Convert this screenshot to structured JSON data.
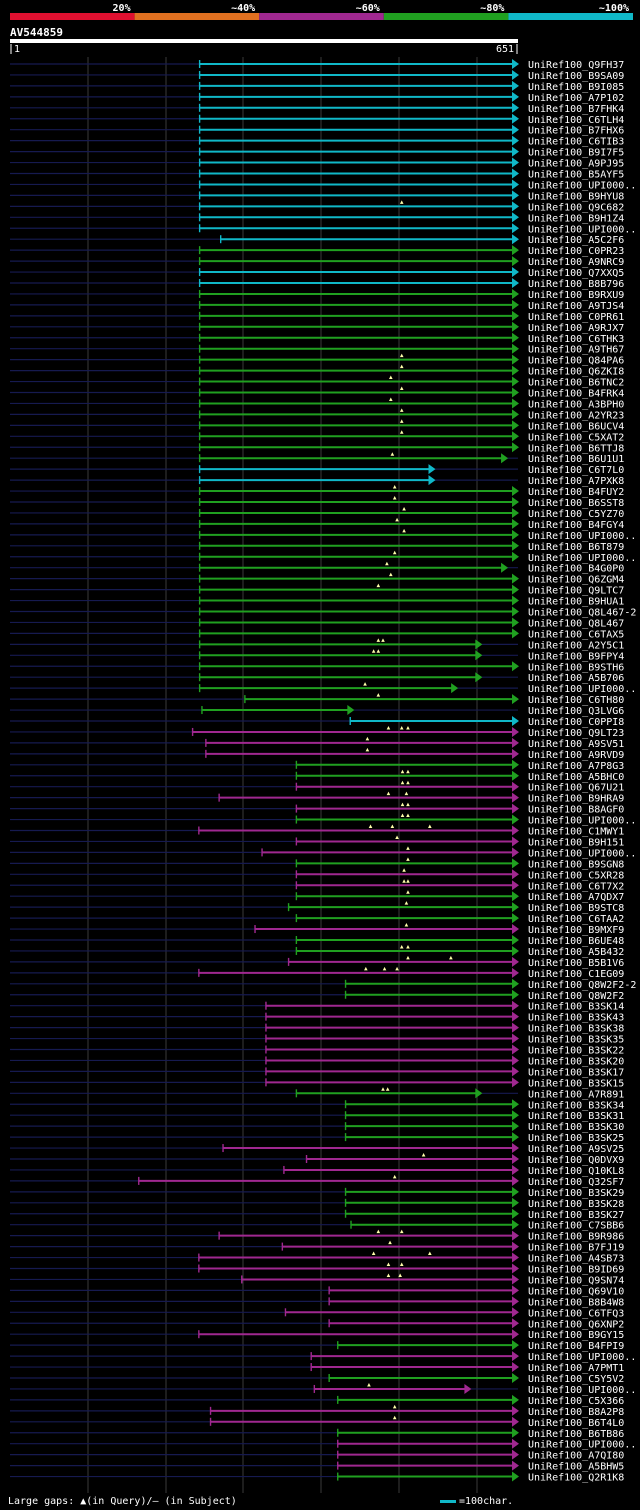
{
  "legend": {
    "bins": [
      {
        "label": "20%",
        "color": "#e01030"
      },
      {
        "label": "~40%",
        "color": "#e07020"
      },
      {
        "label": "~60%",
        "color": "#a02890"
      },
      {
        "label": "~80%",
        "color": "#20a020"
      },
      {
        "label": "~100%",
        "color": "#10b8c8"
      }
    ]
  },
  "query": {
    "name": "AV544859",
    "start_label": "1",
    "end_label": "651",
    "length": 651
  },
  "scale_note": "=100char.",
  "footer": "Large gaps: ▲(in Query)/— (in Subject)",
  "hits": [
    {
      "name": "UniRef100_Q9FH37",
      "cls": "c",
      "s": 243,
      "e": 651
    },
    {
      "name": "UniRef100_B9SA09",
      "cls": "c",
      "s": 243,
      "e": 651
    },
    {
      "name": "UniRef100_B9I085",
      "cls": "c",
      "s": 243,
      "e": 651
    },
    {
      "name": "UniRef100_A7P102",
      "cls": "c",
      "s": 243,
      "e": 651
    },
    {
      "name": "UniRef100_B7FHK4",
      "cls": "c",
      "s": 243,
      "e": 651
    },
    {
      "name": "UniRef100_C6TLH4",
      "cls": "c",
      "s": 243,
      "e": 651
    },
    {
      "name": "UniRef100_B7FHX6",
      "cls": "c",
      "s": 243,
      "e": 651
    },
    {
      "name": "UniRef100_C6TIB3",
      "cls": "c",
      "s": 243,
      "e": 651
    },
    {
      "name": "UniRef100_B9I7F5",
      "cls": "c",
      "s": 243,
      "e": 651
    },
    {
      "name": "UniRef100_A9PJ95",
      "cls": "c",
      "s": 243,
      "e": 651
    },
    {
      "name": "UniRef100_B5AYF5",
      "cls": "c",
      "s": 243,
      "e": 651
    },
    {
      "name": "UniRef100_UPI000..",
      "cls": "c",
      "s": 243,
      "e": 651
    },
    {
      "name": "UniRef100_B9HYU8",
      "cls": "c",
      "s": 243,
      "e": 651
    },
    {
      "name": "UniRef100_Q9C682",
      "cls": "c",
      "s": 243,
      "e": 651,
      "t": [
        502
      ]
    },
    {
      "name": "UniRef100_B9H1Z4",
      "cls": "c",
      "s": 243,
      "e": 651
    },
    {
      "name": "UniRef100_UPI000..",
      "cls": "c",
      "s": 243,
      "e": 651
    },
    {
      "name": "UniRef100_A5C2F6",
      "cls": "c",
      "s": 270,
      "e": 651
    },
    {
      "name": "UniRef100_C0PR23",
      "cls": "g",
      "s": 243,
      "e": 651
    },
    {
      "name": "UniRef100_A9NRC9",
      "cls": "g",
      "s": 243,
      "e": 651
    },
    {
      "name": "UniRef100_Q7XXQ5",
      "cls": "c",
      "s": 243,
      "e": 651
    },
    {
      "name": "UniRef100_B8B796",
      "cls": "c",
      "s": 243,
      "e": 651
    },
    {
      "name": "UniRef100_B9RXU9",
      "cls": "g",
      "s": 243,
      "e": 651
    },
    {
      "name": "UniRef100_A9TJS4",
      "cls": "g",
      "s": 243,
      "e": 651
    },
    {
      "name": "UniRef100_C0PR61",
      "cls": "g",
      "s": 243,
      "e": 651
    },
    {
      "name": "UniRef100_A9RJX7",
      "cls": "g",
      "s": 243,
      "e": 651
    },
    {
      "name": "UniRef100_C6THK3",
      "cls": "g",
      "s": 243,
      "e": 651
    },
    {
      "name": "UniRef100_A9TH67",
      "cls": "g",
      "s": 243,
      "e": 651
    },
    {
      "name": "UniRef100_Q84PA6",
      "cls": "g",
      "s": 243,
      "e": 651,
      "t": [
        502
      ]
    },
    {
      "name": "UniRef100_Q6ZKI8",
      "cls": "g",
      "s": 243,
      "e": 651,
      "t": [
        502
      ]
    },
    {
      "name": "UniRef100_B6TNC2",
      "cls": "g",
      "s": 243,
      "e": 651,
      "t": [
        488
      ]
    },
    {
      "name": "UniRef100_B4FRK4",
      "cls": "g",
      "s": 243,
      "e": 651,
      "t": [
        502
      ]
    },
    {
      "name": "UniRef100_A3BPH0",
      "cls": "g",
      "s": 243,
      "e": 651,
      "t": [
        488
      ]
    },
    {
      "name": "UniRef100_A2YR23",
      "cls": "g",
      "s": 243,
      "e": 651,
      "t": [
        502
      ]
    },
    {
      "name": "UniRef100_B6UCV4",
      "cls": "g",
      "s": 243,
      "e": 651,
      "t": [
        502
      ]
    },
    {
      "name": "UniRef100_C5XAT2",
      "cls": "g",
      "s": 243,
      "e": 651,
      "t": [
        502
      ]
    },
    {
      "name": "UniRef100_B6TTJ8",
      "cls": "g",
      "s": 243,
      "e": 651
    },
    {
      "name": "UniRef100_B6U1U1",
      "cls": "g",
      "s": 243,
      "e": 637,
      "t": [
        490
      ]
    },
    {
      "name": "UniRef100_C6T7L0",
      "cls": "c",
      "s": 243,
      "e": 544
    },
    {
      "name": "UniRef100_A7PXK8",
      "cls": "c",
      "s": 243,
      "e": 544
    },
    {
      "name": "UniRef100_B4FUY2",
      "cls": "g",
      "s": 243,
      "e": 651,
      "t": [
        493
      ]
    },
    {
      "name": "UniRef100_B6SST8",
      "cls": "g",
      "s": 243,
      "e": 651,
      "t": [
        493
      ]
    },
    {
      "name": "UniRef100_C5YZ70",
      "cls": "g",
      "s": 243,
      "e": 651,
      "t": [
        505
      ]
    },
    {
      "name": "UniRef100_B4FGY4",
      "cls": "g",
      "s": 243,
      "e": 651,
      "t": [
        496
      ]
    },
    {
      "name": "UniRef100_UPI000..",
      "cls": "g",
      "s": 243,
      "e": 651,
      "t": [
        505
      ]
    },
    {
      "name": "UniRef100_B6T879",
      "cls": "g",
      "s": 243,
      "e": 651
    },
    {
      "name": "UniRef100_UPI000..",
      "cls": "g",
      "s": 243,
      "e": 651,
      "t": [
        493
      ]
    },
    {
      "name": "UniRef100_B4G0P0",
      "cls": "g",
      "s": 243,
      "e": 637,
      "t": [
        483
      ]
    },
    {
      "name": "UniRef100_Q6ZGM4",
      "cls": "g",
      "s": 243,
      "e": 651,
      "t": [
        488
      ]
    },
    {
      "name": "UniRef100_Q9LTC7",
      "cls": "g",
      "s": 243,
      "e": 651,
      "t": [
        472
      ]
    },
    {
      "name": "UniRef100_B9HUA1",
      "cls": "g",
      "s": 243,
      "e": 651
    },
    {
      "name": "UniRef100_Q8L467-2",
      "cls": "g",
      "s": 243,
      "e": 651
    },
    {
      "name": "UniRef100_Q8L467",
      "cls": "g",
      "s": 243,
      "e": 651
    },
    {
      "name": "UniRef100_C6TAX5",
      "cls": "g",
      "s": 243,
      "e": 651
    },
    {
      "name": "UniRef100_A2Y5C1",
      "cls": "g",
      "s": 243,
      "e": 604,
      "t": [
        472,
        478
      ]
    },
    {
      "name": "UniRef100_B9FPY4",
      "cls": "g",
      "s": 243,
      "e": 604,
      "t": [
        466,
        472
      ]
    },
    {
      "name": "UniRef100_B9STH6",
      "cls": "g",
      "s": 243,
      "e": 651
    },
    {
      "name": "UniRef100_A5B706",
      "cls": "g",
      "s": 243,
      "e": 604
    },
    {
      "name": "UniRef100_UPI000..",
      "cls": "g",
      "s": 243,
      "e": 573,
      "t": [
        455
      ]
    },
    {
      "name": "UniRef100_C6TH80",
      "cls": "g",
      "s": 301,
      "e": 651,
      "t": [
        472
      ]
    },
    {
      "name": "UniRef100_Q3LVG6",
      "cls": "g",
      "s": 246,
      "e": 440
    },
    {
      "name": "UniRef100_C0PPI8",
      "cls": "c",
      "s": 436,
      "e": 651
    },
    {
      "name": "UniRef100_Q9LT23",
      "cls": "m",
      "s": 234,
      "e": 651,
      "t": [
        485,
        502,
        510
      ]
    },
    {
      "name": "UniRef100_A9SV51",
      "cls": "m",
      "s": 251,
      "e": 651,
      "t": [
        458
      ]
    },
    {
      "name": "UniRef100_A9RVD9",
      "cls": "m",
      "s": 251,
      "e": 651,
      "t": [
        458
      ]
    },
    {
      "name": "UniRef100_A7P8G3",
      "cls": "g",
      "s": 367,
      "e": 651
    },
    {
      "name": "UniRef100_A5BHC0",
      "cls": "g",
      "s": 367,
      "e": 651,
      "t": [
        503,
        510
      ]
    },
    {
      "name": "UniRef100_Q67U21",
      "cls": "m",
      "s": 367,
      "e": 651,
      "t": [
        503,
        510
      ]
    },
    {
      "name": "UniRef100_B9HRA9",
      "cls": "m",
      "s": 268,
      "e": 651,
      "t": [
        485,
        508
      ]
    },
    {
      "name": "UniRef100_B8AGF0",
      "cls": "m",
      "s": 367,
      "e": 651,
      "t": [
        503,
        510
      ]
    },
    {
      "name": "UniRef100_UPI000..",
      "cls": "g",
      "s": 367,
      "e": 651,
      "t": [
        503,
        510
      ]
    },
    {
      "name": "UniRef100_C1MWY1",
      "cls": "m",
      "s": 242,
      "e": 651,
      "t": [
        462,
        490,
        538
      ]
    },
    {
      "name": "UniRef100_B9H151",
      "cls": "m",
      "s": 367,
      "e": 651,
      "t": [
        496
      ]
    },
    {
      "name": "UniRef100_UPI000..",
      "cls": "m",
      "s": 323,
      "e": 651,
      "t": [
        510
      ]
    },
    {
      "name": "UniRef100_B9SGN8",
      "cls": "g",
      "s": 367,
      "e": 651,
      "t": [
        510
      ]
    },
    {
      "name": "UniRef100_C5XR28",
      "cls": "m",
      "s": 367,
      "e": 651,
      "t": [
        505
      ]
    },
    {
      "name": "UniRef100_C6T7X2",
      "cls": "m",
      "s": 367,
      "e": 651,
      "t": [
        505,
        510
      ]
    },
    {
      "name": "UniRef100_A7QDX7",
      "cls": "g",
      "s": 367,
      "e": 651,
      "t": [
        510
      ]
    },
    {
      "name": "UniRef100_B9STC8",
      "cls": "g",
      "s": 357,
      "e": 651,
      "t": [
        508
      ]
    },
    {
      "name": "UniRef100_C6TAA2",
      "cls": "g",
      "s": 367,
      "e": 651
    },
    {
      "name": "UniRef100_B9MXF9",
      "cls": "m",
      "s": 314,
      "e": 651,
      "t": [
        508
      ]
    },
    {
      "name": "UniRef100_B6UE48",
      "cls": "g",
      "s": 367,
      "e": 651
    },
    {
      "name": "UniRef100_A5B432",
      "cls": "g",
      "s": 367,
      "e": 651,
      "t": [
        502,
        510
      ]
    },
    {
      "name": "UniRef100_B5B1V6",
      "cls": "m",
      "s": 357,
      "e": 651,
      "t": [
        510,
        565
      ]
    },
    {
      "name": "UniRef100_C1EG09",
      "cls": "m",
      "s": 242,
      "e": 651,
      "t": [
        456,
        480,
        496
      ]
    },
    {
      "name": "UniRef100_Q8W2F2-2",
      "cls": "g",
      "s": 430,
      "e": 651
    },
    {
      "name": "UniRef100_Q8W2F2",
      "cls": "g",
      "s": 430,
      "e": 651
    },
    {
      "name": "UniRef100_B3SK14",
      "cls": "m",
      "s": 328,
      "e": 651
    },
    {
      "name": "UniRef100_B3SK43",
      "cls": "m",
      "s": 328,
      "e": 651
    },
    {
      "name": "UniRef100_B3SK38",
      "cls": "m",
      "s": 328,
      "e": 651
    },
    {
      "name": "UniRef100_B3SK35",
      "cls": "m",
      "s": 328,
      "e": 651
    },
    {
      "name": "UniRef100_B3SK22",
      "cls": "m",
      "s": 328,
      "e": 651
    },
    {
      "name": "UniRef100_B3SK20",
      "cls": "m",
      "s": 328,
      "e": 651
    },
    {
      "name": "UniRef100_B3SK17",
      "cls": "m",
      "s": 328,
      "e": 651
    },
    {
      "name": "UniRef100_B3SK15",
      "cls": "m",
      "s": 328,
      "e": 651
    },
    {
      "name": "UniRef100_A7R891",
      "cls": "g",
      "s": 367,
      "e": 604,
      "t": [
        478,
        484
      ]
    },
    {
      "name": "UniRef100_B3SK34",
      "cls": "g",
      "s": 430,
      "e": 651
    },
    {
      "name": "UniRef100_B3SK31",
      "cls": "g",
      "s": 430,
      "e": 651
    },
    {
      "name": "UniRef100_B3SK30",
      "cls": "g",
      "s": 430,
      "e": 651
    },
    {
      "name": "UniRef100_B3SK25",
      "cls": "g",
      "s": 430,
      "e": 651
    },
    {
      "name": "UniRef100_A9SV25",
      "cls": "m",
      "s": 273,
      "e": 651
    },
    {
      "name": "UniRef100_Q0DVX9",
      "cls": "m",
      "s": 380,
      "e": 651,
      "t": [
        530
      ]
    },
    {
      "name": "UniRef100_Q10KL8",
      "cls": "m",
      "s": 351,
      "e": 651
    },
    {
      "name": "UniRef100_Q32SF7",
      "cls": "m",
      "s": 165,
      "e": 651,
      "t": [
        493
      ]
    },
    {
      "name": "UniRef100_B3SK29",
      "cls": "g",
      "s": 430,
      "e": 651
    },
    {
      "name": "UniRef100_B3SK28",
      "cls": "g",
      "s": 430,
      "e": 651
    },
    {
      "name": "UniRef100_B3SK27",
      "cls": "g",
      "s": 430,
      "e": 651
    },
    {
      "name": "UniRef100_C7SBB6",
      "cls": "g",
      "s": 437,
      "e": 651
    },
    {
      "name": "UniRef100_B9R986",
      "cls": "m",
      "s": 268,
      "e": 651,
      "t": [
        472,
        502
      ]
    },
    {
      "name": "UniRef100_B7FJ19",
      "cls": "m",
      "s": 349,
      "e": 651,
      "t": [
        487
      ]
    },
    {
      "name": "UniRef100_A4SB73",
      "cls": "m",
      "s": 242,
      "e": 651,
      "t": [
        466,
        538
      ]
    },
    {
      "name": "UniRef100_B9ID69",
      "cls": "m",
      "s": 242,
      "e": 651,
      "t": [
        485,
        502
      ]
    },
    {
      "name": "UniRef100_Q9SN74",
      "cls": "m",
      "s": 297,
      "e": 651,
      "t": [
        485,
        500
      ]
    },
    {
      "name": "UniRef100_Q69V10",
      "cls": "m",
      "s": 409,
      "e": 651
    },
    {
      "name": "UniRef100_B8B4W8",
      "cls": "m",
      "s": 409,
      "e": 651
    },
    {
      "name": "UniRef100_C6TFQ3",
      "cls": "m",
      "s": 353,
      "e": 651
    },
    {
      "name": "UniRef100_Q6XNP2",
      "cls": "m",
      "s": 409,
      "e": 651
    },
    {
      "name": "UniRef100_B9GY15",
      "cls": "m",
      "s": 242,
      "e": 651
    },
    {
      "name": "UniRef100_B4FPI9",
      "cls": "g",
      "s": 420,
      "e": 651
    },
    {
      "name": "UniRef100_UPI000..",
      "cls": "m",
      "s": 386,
      "e": 651
    },
    {
      "name": "UniRef100_A7PMT1",
      "cls": "m",
      "s": 386,
      "e": 651
    },
    {
      "name": "UniRef100_C5Y5V2",
      "cls": "g",
      "s": 409,
      "e": 651
    },
    {
      "name": "UniRef100_UPI000..",
      "cls": "m",
      "s": 390,
      "e": 590,
      "t": [
        460
      ]
    },
    {
      "name": "UniRef100_C5X366",
      "cls": "g",
      "s": 420,
      "e": 651
    },
    {
      "name": "UniRef100_B8A2P8",
      "cls": "m",
      "s": 257,
      "e": 651,
      "t": [
        493
      ]
    },
    {
      "name": "UniRef100_B6T4L0",
      "cls": "m",
      "s": 257,
      "e": 651,
      "t": [
        493
      ]
    },
    {
      "name": "UniRef100_B6TB86",
      "cls": "g",
      "s": 420,
      "e": 651
    },
    {
      "name": "UniRef100_UPI000..",
      "cls": "m",
      "s": 420,
      "e": 651
    },
    {
      "name": "UniRef100_A7QI80",
      "cls": "m",
      "s": 420,
      "e": 651
    },
    {
      "name": "UniRef100_A5BHW5",
      "cls": "m",
      "s": 420,
      "e": 651
    },
    {
      "name": "UniRef100_Q2R1K8",
      "cls": "g",
      "s": 420,
      "e": 651
    }
  ]
}
